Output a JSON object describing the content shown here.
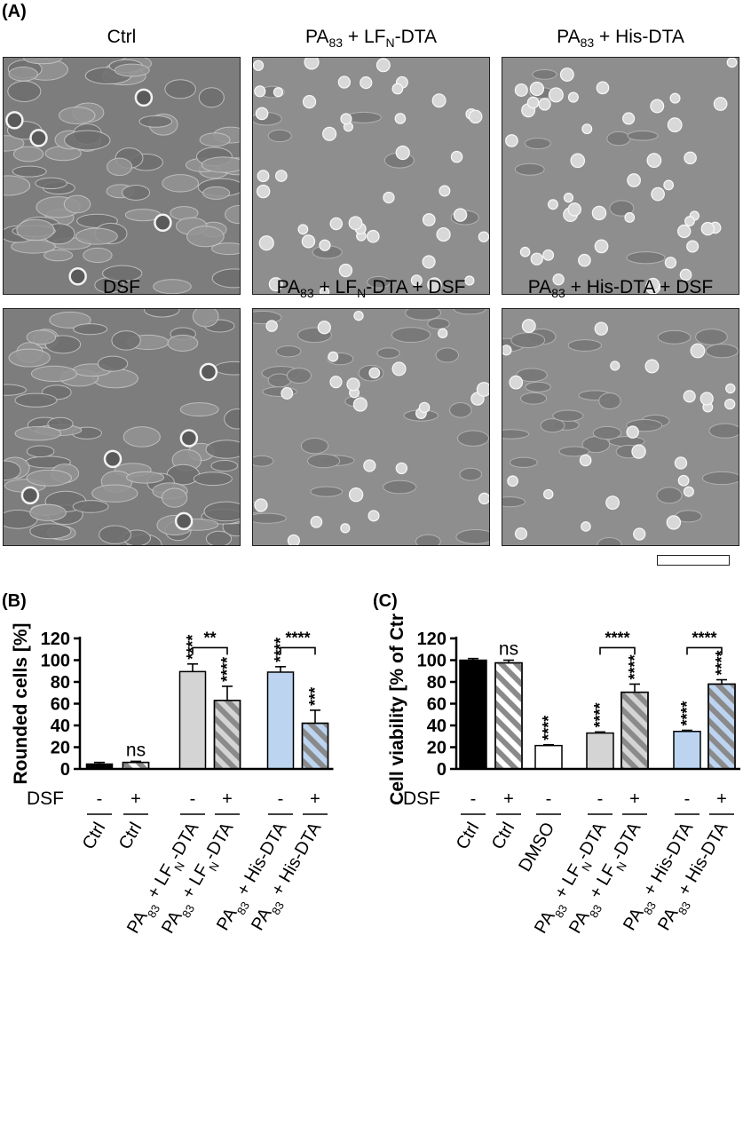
{
  "panels": {
    "a_letter": "(A)",
    "b_letter": "(B)",
    "c_letter": "(C)"
  },
  "micrographs": [
    {
      "title_main": "Ctrl",
      "title_sub": "",
      "title_tail": "",
      "style": "confluent"
    },
    {
      "title_main": "PA",
      "title_sub": "83",
      "title_tail": " + LF",
      "title_sub2": "N",
      "title_tail2": "-DTA",
      "style": "rounded"
    },
    {
      "title_main": "PA",
      "title_sub": "83",
      "title_tail": " + His-DTA",
      "style": "rounded"
    },
    {
      "title_main": "DSF",
      "title_sub": "",
      "title_tail": "",
      "style": "confluent"
    },
    {
      "title_main": "PA",
      "title_sub": "83",
      "title_tail": " + LF",
      "title_sub2": "N",
      "title_tail2": "-DTA + DSF",
      "style": "mixed"
    },
    {
      "title_main": "PA",
      "title_sub": "83",
      "title_tail": " + His-DTA + DSF",
      "style": "mixed"
    }
  ],
  "colors": {
    "black": "#000000",
    "white": "#ffffff",
    "grey": "#d4d4d4",
    "blue": "#bcd4f0",
    "hatch": "#8a8a8a"
  },
  "chart_data": [
    {
      "type": "bar",
      "ylabel": "Rounded cells [%]",
      "ylim": [
        0,
        120
      ],
      "yticks": [
        "0",
        "20",
        "40",
        "60",
        "80",
        "100",
        "120"
      ],
      "dsf_label": "DSF",
      "bars": [
        {
          "category": "Ctrl",
          "dsf": "-",
          "value": 4.5,
          "error": 1.5,
          "fill": "black",
          "hatched": false,
          "sig": ""
        },
        {
          "category": "Ctrl",
          "dsf": "+",
          "value": 6,
          "error": 1,
          "fill": "white",
          "hatched": true,
          "sig": "ns"
        },
        {
          "category": "PA83 + LFN-DTA",
          "dsf": "-",
          "value": 89.5,
          "error": 7,
          "fill": "grey",
          "hatched": false,
          "sig": "****"
        },
        {
          "category": "PA83 + LFN-DTA",
          "dsf": "+",
          "value": 63,
          "error": 13,
          "fill": "grey",
          "hatched": true,
          "sig": "****"
        },
        {
          "category": "PA83 + His-DTA",
          "dsf": "-",
          "value": 89,
          "error": 5,
          "fill": "blue",
          "hatched": false,
          "sig": "****"
        },
        {
          "category": "PA83 + His-DTA",
          "dsf": "+",
          "value": 42,
          "error": 12,
          "fill": "blue",
          "hatched": true,
          "sig": "***"
        }
      ],
      "brackets": [
        {
          "from": 2,
          "to": 3,
          "label": "**"
        },
        {
          "from": 4,
          "to": 5,
          "label": "****"
        }
      ]
    },
    {
      "type": "bar",
      "ylabel": "Cell viability [% of Ctrl]",
      "ylim": [
        0,
        120
      ],
      "yticks": [
        "0",
        "20",
        "40",
        "60",
        "80",
        "100",
        "120"
      ],
      "dsf_label": "DSF",
      "bars": [
        {
          "category": "Ctrl",
          "dsf": "-",
          "value": 100,
          "error": 1.5,
          "fill": "black",
          "hatched": false,
          "sig": ""
        },
        {
          "category": "Ctrl",
          "dsf": "+",
          "value": 97.5,
          "error": 2.5,
          "fill": "white",
          "hatched": true,
          "sig": "ns"
        },
        {
          "category": "DMSO",
          "dsf": "-",
          "value": 21.5,
          "error": 0.7,
          "fill": "white",
          "hatched": false,
          "sig": "****"
        },
        {
          "category": "PA83 + LFN-DTA",
          "dsf": "-",
          "value": 33,
          "error": 1,
          "fill": "grey",
          "hatched": false,
          "sig": "****"
        },
        {
          "category": "PA83 + LFN-DTA",
          "dsf": "+",
          "value": 70.5,
          "error": 7.5,
          "fill": "grey",
          "hatched": true,
          "sig": "****"
        },
        {
          "category": "PA83 + His-DTA",
          "dsf": "-",
          "value": 34.5,
          "error": 1,
          "fill": "blue",
          "hatched": false,
          "sig": "****"
        },
        {
          "category": "PA83 + His-DTA",
          "dsf": "+",
          "value": 78,
          "error": 4,
          "fill": "blue",
          "hatched": true,
          "sig": "****"
        }
      ],
      "brackets": [
        {
          "from": 3,
          "to": 4,
          "label": "****"
        },
        {
          "from": 5,
          "to": 6,
          "label": "****"
        }
      ]
    }
  ]
}
